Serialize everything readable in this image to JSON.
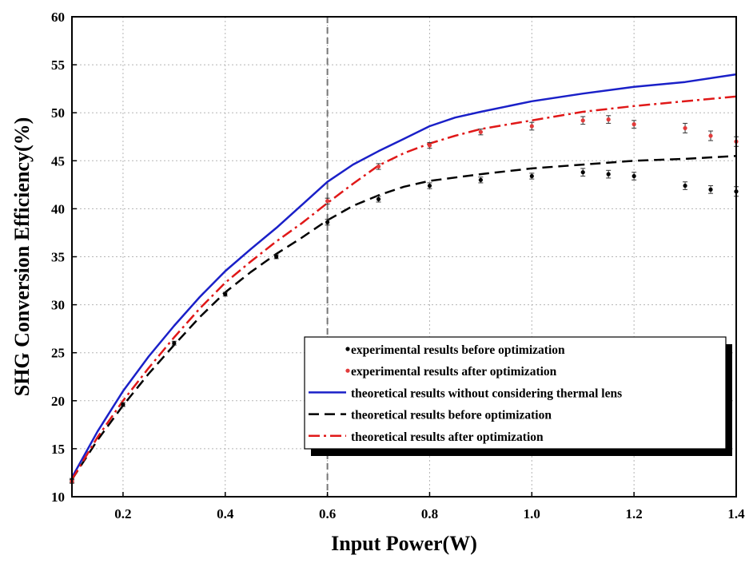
{
  "chart_data": {
    "type": "line",
    "title": "",
    "xlabel": "Input Power(W)",
    "ylabel": "SHG Conversion Efficiency(%)",
    "xlim": [
      0.1,
      1.4
    ],
    "ylim": [
      10,
      60
    ],
    "x_ticks": [
      "0.2",
      "0.4",
      "0.6",
      "0.8",
      "1.0",
      "1.2",
      "1.4"
    ],
    "y_ticks": [
      "10",
      "15",
      "20",
      "25",
      "30",
      "35",
      "40",
      "45",
      "50",
      "55",
      "60"
    ],
    "x_tick_values": [
      0.2,
      0.4,
      0.6,
      0.8,
      1.0,
      1.2,
      1.4
    ],
    "y_tick_values": [
      10,
      15,
      20,
      25,
      30,
      35,
      40,
      45,
      50,
      55,
      60
    ],
    "grid": true,
    "reference_line": {
      "x": 0.6,
      "style": "dashed",
      "color": "#777777"
    },
    "legend_position": "bottom-right",
    "series": [
      {
        "name": "experimental results before optimization",
        "kind": "points",
        "color": "#000000",
        "x": [
          0.1,
          0.2,
          0.3,
          0.4,
          0.5,
          0.6,
          0.7,
          0.8,
          0.9,
          1.0,
          1.1,
          1.15,
          1.2,
          1.3,
          1.35,
          1.4
        ],
        "y": [
          11.7,
          19.6,
          26.0,
          31.1,
          35.0,
          38.6,
          41.0,
          42.4,
          43.0,
          43.4,
          43.8,
          43.6,
          43.4,
          42.4,
          42.0,
          41.8
        ],
        "err": [
          0.2,
          0.2,
          0.2,
          0.2,
          0.2,
          0.3,
          0.3,
          0.3,
          0.3,
          0.3,
          0.4,
          0.4,
          0.4,
          0.4,
          0.4,
          0.5
        ]
      },
      {
        "name": "experimental results after optimization",
        "kind": "points",
        "color": "#e23b3b",
        "x": [
          0.1,
          0.6,
          0.7,
          0.8,
          0.9,
          1.0,
          1.1,
          1.15,
          1.2,
          1.3,
          1.35,
          1.4
        ],
        "y": [
          11.6,
          40.8,
          44.4,
          46.6,
          48.0,
          48.6,
          49.2,
          49.3,
          48.8,
          48.4,
          47.6,
          47.0
        ],
        "err": [
          0.2,
          0.3,
          0.3,
          0.3,
          0.3,
          0.4,
          0.4,
          0.4,
          0.4,
          0.5,
          0.5,
          0.5
        ]
      },
      {
        "name": "theoretical results without considering thermal lens",
        "kind": "line",
        "dash": "solid",
        "color": "#1a20c8",
        "x": [
          0.1,
          0.15,
          0.2,
          0.25,
          0.3,
          0.35,
          0.4,
          0.45,
          0.5,
          0.55,
          0.6,
          0.65,
          0.7,
          0.75,
          0.8,
          0.85,
          0.9,
          1.0,
          1.1,
          1.2,
          1.3,
          1.4
        ],
        "y": [
          12.0,
          16.8,
          21.0,
          24.6,
          27.8,
          30.8,
          33.5,
          35.8,
          38.0,
          40.4,
          42.8,
          44.6,
          46.0,
          47.3,
          48.6,
          49.5,
          50.1,
          51.2,
          52.0,
          52.7,
          53.2,
          54.0
        ]
      },
      {
        "name": "theoretical results before optimization",
        "kind": "line",
        "dash": "dash",
        "color": "#000000",
        "x": [
          0.1,
          0.15,
          0.2,
          0.25,
          0.3,
          0.35,
          0.4,
          0.45,
          0.5,
          0.55,
          0.6,
          0.65,
          0.7,
          0.75,
          0.8,
          0.9,
          1.0,
          1.1,
          1.2,
          1.3,
          1.4
        ],
        "y": [
          11.8,
          15.9,
          19.5,
          22.8,
          25.8,
          28.7,
          31.3,
          33.4,
          35.3,
          37.0,
          38.8,
          40.3,
          41.4,
          42.3,
          42.9,
          43.6,
          44.2,
          44.6,
          45.0,
          45.2,
          45.5
        ]
      },
      {
        "name": "theoretical results after optimization",
        "kind": "line",
        "dash": "dashdot",
        "color": "#e01818",
        "x": [
          0.1,
          0.15,
          0.2,
          0.25,
          0.3,
          0.35,
          0.4,
          0.45,
          0.5,
          0.55,
          0.6,
          0.65,
          0.7,
          0.75,
          0.8,
          0.85,
          0.9,
          1.0,
          1.1,
          1.2,
          1.3,
          1.4
        ],
        "y": [
          11.8,
          16.2,
          20.0,
          23.4,
          26.6,
          29.6,
          32.3,
          34.5,
          36.6,
          38.5,
          40.6,
          42.6,
          44.5,
          45.8,
          46.8,
          47.6,
          48.3,
          49.2,
          50.1,
          50.7,
          51.2,
          51.7
        ]
      }
    ]
  }
}
